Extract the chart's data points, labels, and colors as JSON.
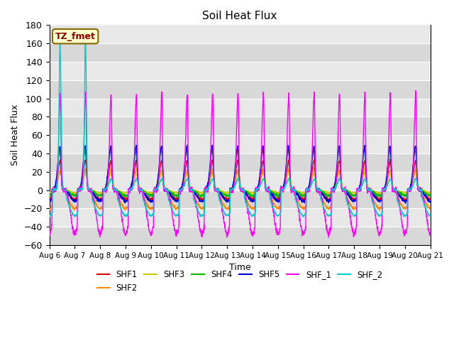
{
  "title": "Soil Heat Flux",
  "xlabel": "Time",
  "ylabel": "Soil Heat Flux",
  "ylim": [
    -60,
    180
  ],
  "yticks": [
    -60,
    -40,
    -20,
    0,
    20,
    40,
    60,
    80,
    100,
    120,
    140,
    160,
    180
  ],
  "num_days": 15,
  "points_per_day": 144,
  "series_colors": {
    "SHF1": "#dd0000",
    "SHF2": "#ff8800",
    "SHF3": "#cccc00",
    "SHF4": "#00bb00",
    "SHF5": "#0000dd",
    "SHF_1": "#ff00ff",
    "SHF_2": "#00cccc"
  },
  "plot_bg_color": "#e8e8e8",
  "band_colors": [
    "#d8d8d8",
    "#e8e8e8"
  ],
  "annotation_text": "TZ_fmet",
  "annotation_bg": "#ffffcc",
  "annotation_border": "#886600",
  "annotation_text_color": "#880000",
  "month_days": [
    "Aug 6",
    "Aug 7",
    "Aug 8",
    "Aug 9",
    "Aug 10",
    "Aug 11",
    "Aug 12",
    "Aug 13",
    "Aug 14",
    "Aug 15",
    "Aug 16",
    "Aug 17",
    "Aug 18",
    "Aug 19",
    "Aug 20",
    "Aug 21"
  ],
  "figsize": [
    6.4,
    4.8
  ],
  "dpi": 100
}
